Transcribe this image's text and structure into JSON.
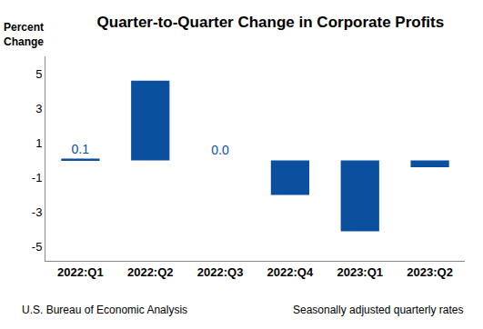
{
  "chart_data": {
    "type": "bar",
    "title": "Quarter-to-Quarter Change in Corporate Profits",
    "ylabel": "Percent\nChange",
    "categories": [
      "2022:Q1",
      "2022:Q2",
      "2022:Q3",
      "2022:Q4",
      "2023:Q1",
      "2023:Q2"
    ],
    "values": [
      0.1,
      4.6,
      0.0,
      -2.0,
      -4.1,
      -0.4
    ],
    "value_labels": [
      "0.1",
      null,
      "0.0",
      null,
      null,
      null
    ],
    "data_labels": true,
    "color": "#0b4f9f",
    "ylim": [
      -5.8,
      6
    ],
    "yticks": [
      -5,
      -3,
      -1,
      1,
      3,
      5
    ],
    "grid": false,
    "annotations": [
      "U.S. Bureau of Economic Analysis",
      "Seasonally adjusted quarterly rates"
    ]
  }
}
